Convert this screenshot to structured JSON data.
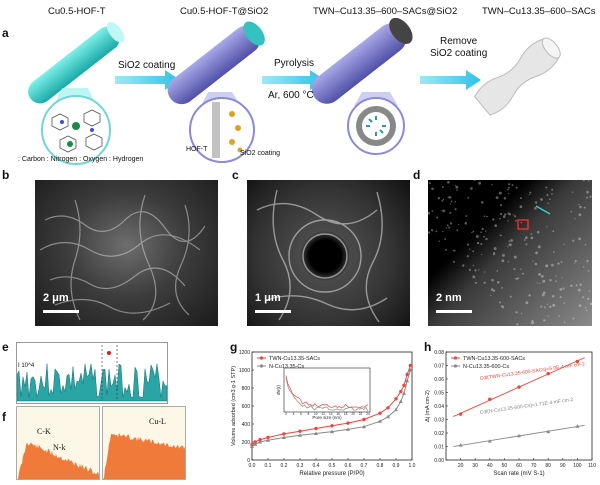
{
  "panel_a": {
    "label": "a",
    "stage1_title": "Cu0.5-HOF-T",
    "stage2_title": "Cu0.5-HOF-T@SiO2",
    "stage3_title": "TWN–Cu13.35–600–SACs@SiO2",
    "stage4_title": "TWN–Cu13.35–600–SACs",
    "step1_text": "SiO2 coating",
    "step2_text": "Pyrolysis",
    "step2_sub": "Ar, 600 °C",
    "step3_line1": "Remove",
    "step3_line2": "SiO2 coating",
    "hof_label": "HOF-T",
    "sio2_label": "SiO2 coating",
    "legend": ": Carbon  : Nitrogen  : Oxygen  : Hydrogen"
  },
  "panel_b": {
    "label": "b",
    "scale": "2 μm"
  },
  "panel_c": {
    "label": "c",
    "scale": "1 μm"
  },
  "panel_d": {
    "label": "d",
    "scale": "2 nm"
  },
  "panel_e": {
    "label": "e",
    "yaxis": "I 10^4"
  },
  "panel_f": {
    "label": "f",
    "peak1": "C-K",
    "peak2": "N-k",
    "peak3": "Cu-L"
  },
  "panel_g": {
    "label": "g"
  },
  "panel_h": {
    "label": "h"
  },
  "chart_data": [
    {
      "type": "line",
      "panel": "g",
      "xlabel": "Relative pressure (P/P0)",
      "ylabel": "Volume adsorbed (cm3 g-1 STP)",
      "xlim": [
        0.0,
        1.0
      ],
      "ylim": [
        0,
        1200
      ],
      "xticks": [
        "0.0",
        "0.1",
        "0.2",
        "0.3",
        "0.4",
        "0.5",
        "0.6",
        "0.7",
        "0.8",
        "0.9",
        "1.0"
      ],
      "yticks": [
        "0",
        "200",
        "400",
        "600",
        "800",
        "1000",
        "1200"
      ],
      "series": [
        {
          "name": "TWN-Cu13.35-SACs",
          "color": "#e8473c",
          "x": [
            0.0,
            0.02,
            0.05,
            0.1,
            0.2,
            0.3,
            0.4,
            0.5,
            0.6,
            0.7,
            0.8,
            0.85,
            0.9,
            0.93,
            0.95,
            0.97,
            0.99
          ],
          "y": [
            170,
            200,
            225,
            250,
            290,
            320,
            350,
            380,
            410,
            450,
            520,
            580,
            680,
            760,
            830,
            950,
            1050
          ]
        },
        {
          "name": "N-Cu13.35-Cs",
          "color": "#888888",
          "x": [
            0.0,
            0.02,
            0.05,
            0.1,
            0.2,
            0.3,
            0.4,
            0.5,
            0.6,
            0.7,
            0.8,
            0.85,
            0.9,
            0.93,
            0.95,
            0.97,
            0.99
          ],
          "y": [
            150,
            175,
            200,
            220,
            250,
            275,
            295,
            315,
            340,
            370,
            430,
            480,
            560,
            650,
            740,
            880,
            1000
          ]
        }
      ],
      "inset": {
        "xlabel": "Pore size (nm)",
        "ylabel": "dV(r)",
        "xticks": [
          "2",
          "4",
          "6",
          "8",
          "10",
          "12",
          "14",
          "16",
          "18",
          "20",
          "22",
          "24"
        ]
      }
    },
    {
      "type": "scatter",
      "panel": "h",
      "xlabel": "Scan rate (mV S-1)",
      "ylabel": "Δj (mA cm-2)",
      "xlim": [
        10,
        110
      ],
      "ylim": [
        0.0,
        0.08
      ],
      "xticks": [
        "20",
        "30",
        "40",
        "50",
        "60",
        "70",
        "80",
        "90",
        "100",
        "110"
      ],
      "yticks": [
        "0.00",
        "0.01",
        "0.02",
        "0.03",
        "0.04",
        "0.05",
        "0.06",
        "0.07",
        "0.08"
      ],
      "series": [
        {
          "name": "TWN-Cu13.35-600-SACs",
          "color": "#e8473c",
          "x": [
            20,
            40,
            60,
            80,
            100
          ],
          "y": [
            0.034,
            0.045,
            0.054,
            0.064,
            0.073
          ],
          "fit_label": "Cdl(TWN-Cu13.35-600-SACs)=5.0E-4 mF cm-2"
        },
        {
          "name": "N-Cu13.35-600-Cs",
          "color": "#888888",
          "x": [
            20,
            40,
            60,
            80,
            100
          ],
          "y": [
            0.011,
            0.014,
            0.018,
            0.021,
            0.025
          ],
          "fit_label": "Cdl(N-Cu13.35-600-Cs)=1.71E-4 mF cm-2"
        }
      ]
    }
  ]
}
